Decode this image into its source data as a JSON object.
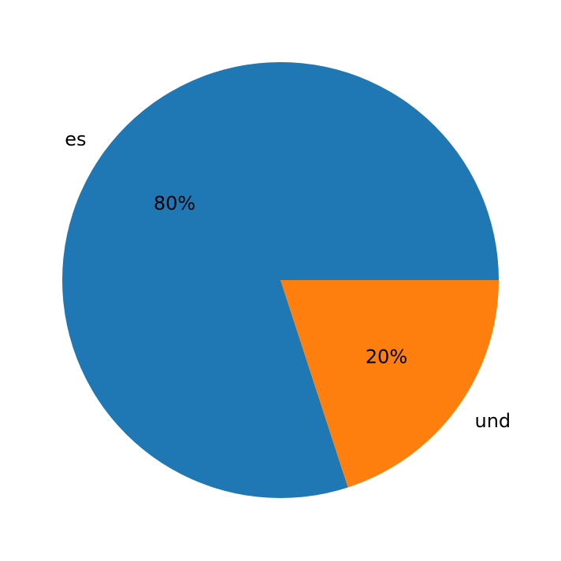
{
  "chart_data": {
    "type": "pie",
    "categories": [
      "es",
      "und"
    ],
    "values": [
      80,
      20
    ],
    "percent_labels": [
      "80%",
      "20%"
    ],
    "colors": [
      "#1f77b4",
      "#ff7f0e"
    ],
    "start_angle_deg": 0,
    "direction": "counterclockwise",
    "title": "",
    "legend": "none"
  }
}
